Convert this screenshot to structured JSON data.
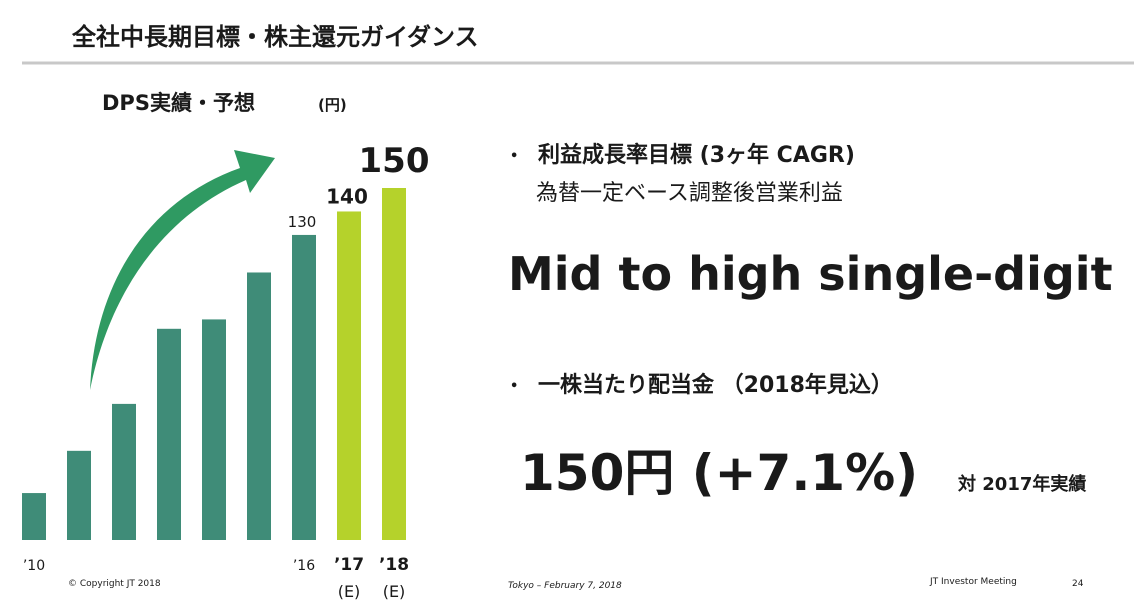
{
  "header": {
    "title": "全社中長期目標・株主還元ガイダンス"
  },
  "chart_data": {
    "type": "bar",
    "title": "DPS実績・予想",
    "unit": "(円)",
    "categories": [
      "’10",
      null,
      null,
      null,
      null,
      null,
      "’16",
      "’17",
      "’18"
    ],
    "category_notes": [
      null,
      null,
      null,
      null,
      null,
      null,
      null,
      "(E)",
      "(E)"
    ],
    "values": [
      20,
      38,
      58,
      90,
      94,
      114,
      130,
      140,
      150
    ],
    "value_labels": [
      null,
      null,
      null,
      null,
      null,
      null,
      "130",
      "140",
      "150"
    ],
    "colors": [
      "#3f8c78",
      "#3f8c78",
      "#3f8c78",
      "#3f8c78",
      "#3f8c78",
      "#3f8c78",
      "#3f8c78",
      "#b5d22b",
      "#b5d22b"
    ]
  },
  "content": {
    "bullet1": "利益成長率目標 (3ヶ年 CAGR)",
    "bullet1_sub": "為替一定ベース調整後営業利益",
    "headline1": "Mid to high single-digit",
    "bullet2": "一株当たり配当金 （2018年見込）",
    "headline2": "150円 (+7.1%)",
    "headline2_note": "対 2017年実績"
  },
  "footer": {
    "copyright": "© Copyright JT 2018",
    "place_date": "Tokyo – February 7, 2018",
    "event": "JT Investor Meeting",
    "page": "24"
  }
}
